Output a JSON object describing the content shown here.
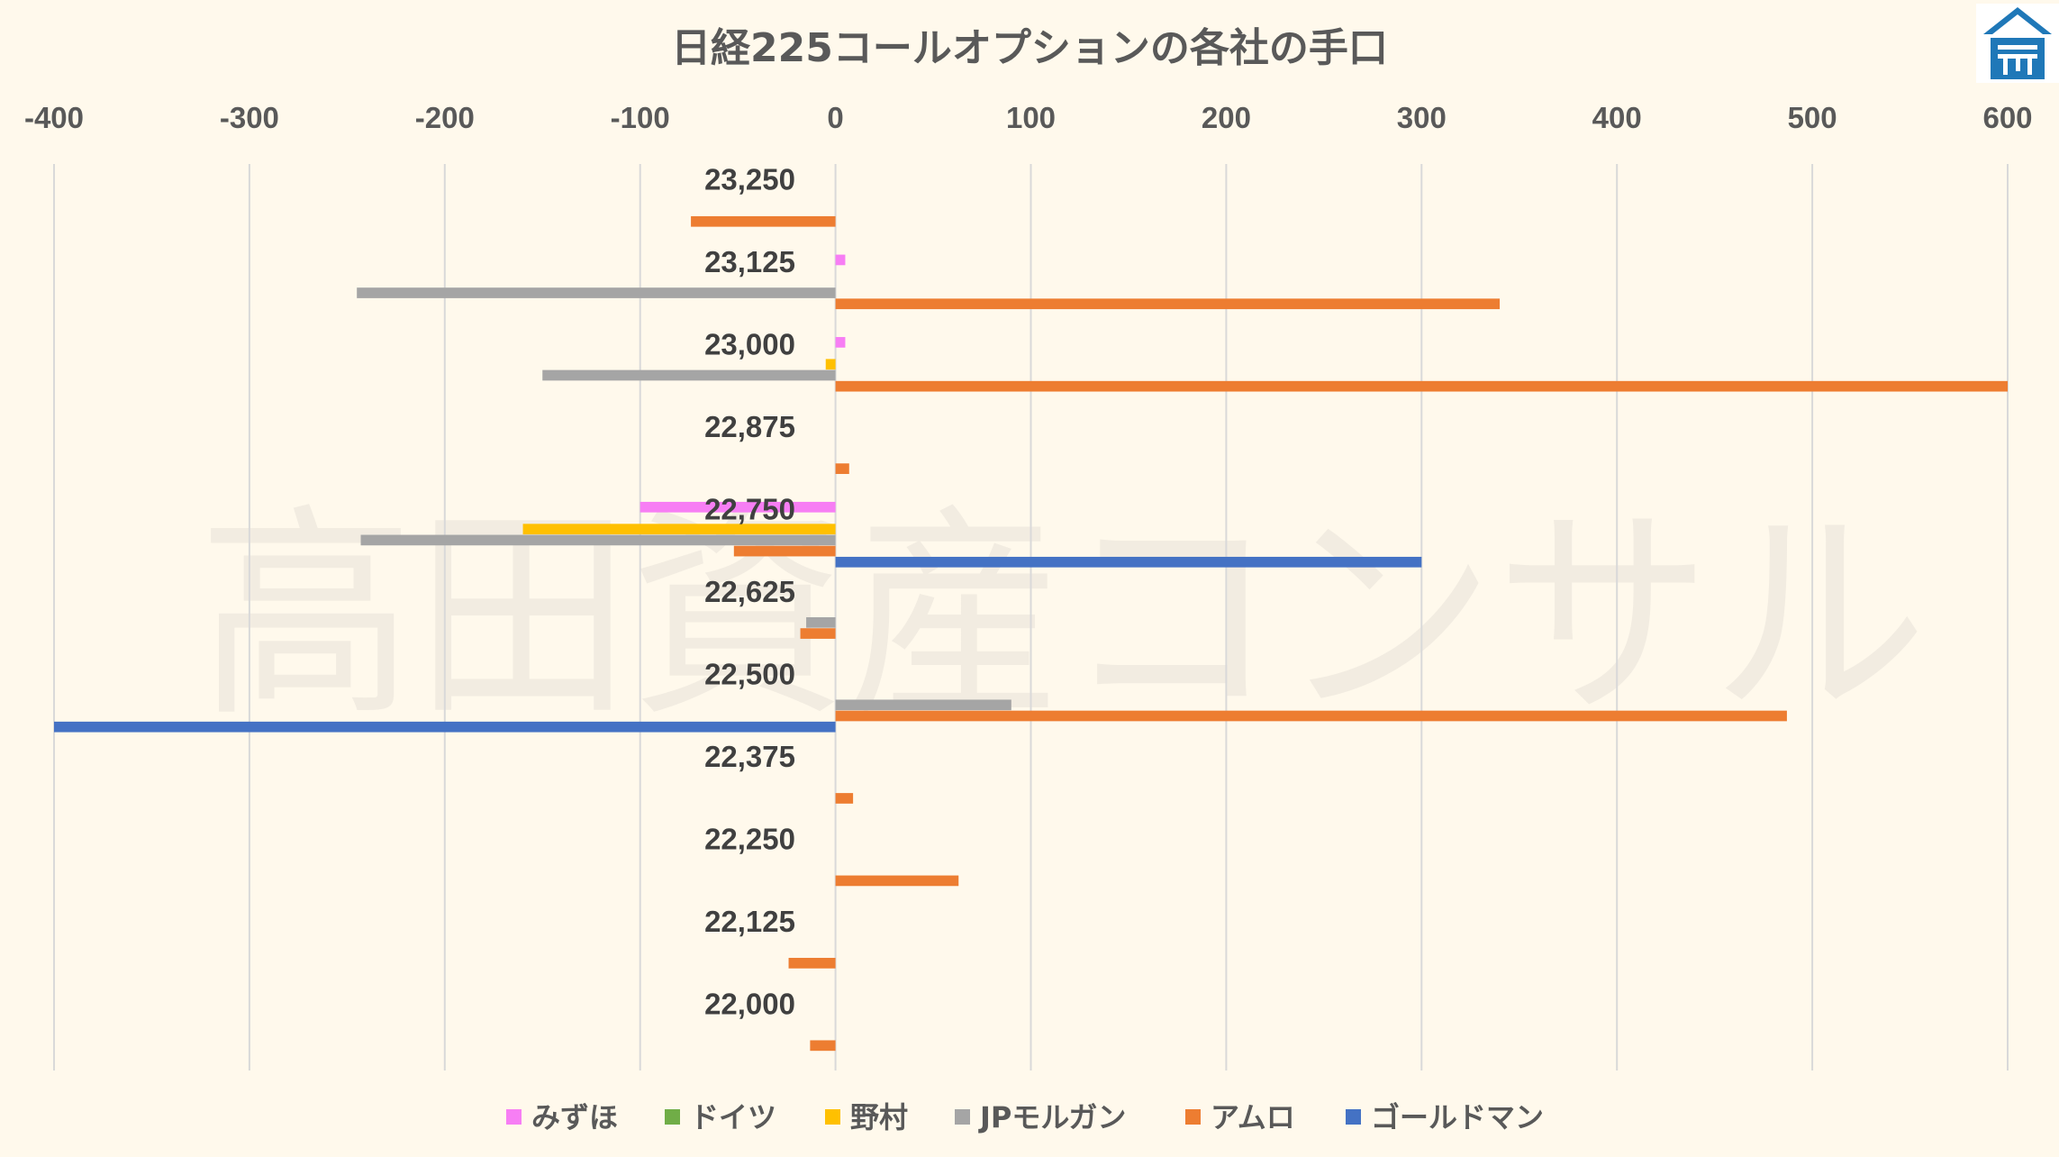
{
  "watermark": "高田資産コンサル",
  "logo": {
    "name": "house-logo-icon",
    "color": "#1f78b8"
  },
  "chart_data": {
    "type": "bar",
    "orientation": "horizontal",
    "title": "日経225コールオプションの各社の手口",
    "xlim": [
      -400,
      600
    ],
    "x_ticks": [
      -400,
      -300,
      -200,
      -100,
      0,
      100,
      200,
      300,
      400,
      500,
      600
    ],
    "x_tick_labels": [
      "-400",
      "-300",
      "-200",
      "-100",
      "0",
      "100",
      "200",
      "300",
      "400",
      "500",
      "600"
    ],
    "x_axis_position": "top",
    "grid": true,
    "legend_position": "bottom",
    "categories": [
      "23,250",
      "23,125",
      "23,000",
      "22,875",
      "22,750",
      "22,625",
      "22,500",
      "22,375",
      "22,250",
      "22,125",
      "22,000"
    ],
    "series": [
      {
        "name": "みずほ",
        "color": "#f77ef4",
        "values": [
          0,
          5,
          5,
          0,
          -100,
          0,
          0,
          0,
          0,
          0,
          0
        ]
      },
      {
        "name": "ドイツ",
        "color": "#70ad47",
        "values": [
          0,
          0,
          0,
          0,
          0,
          0,
          0,
          0,
          0,
          0,
          0
        ]
      },
      {
        "name": "野村",
        "color": "#ffc000",
        "values": [
          0,
          0,
          -5,
          0,
          -160,
          0,
          0,
          0,
          0,
          0,
          0
        ]
      },
      {
        "name": "JPモルガン",
        "color": "#a5a5a5",
        "values": [
          0,
          -245,
          -150,
          0,
          -243,
          -15,
          90,
          0,
          0,
          0,
          0
        ]
      },
      {
        "name": "アムロ",
        "color": "#ed7d31",
        "values": [
          -74,
          340,
          600,
          7,
          -52,
          -18,
          487,
          9,
          63,
          -24,
          -13
        ]
      },
      {
        "name": "ゴールドマン",
        "color": "#4472c4",
        "values": [
          0,
          0,
          0,
          0,
          300,
          0,
          -400,
          0,
          0,
          0,
          0
        ]
      }
    ]
  }
}
